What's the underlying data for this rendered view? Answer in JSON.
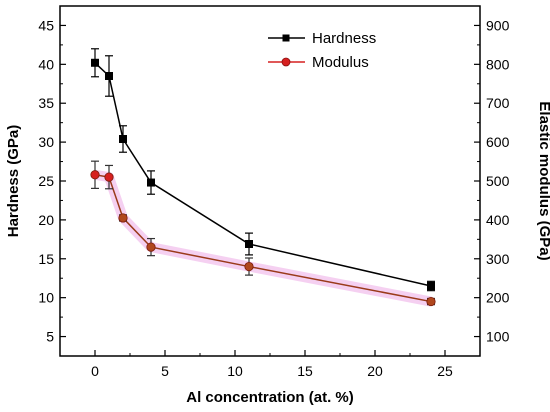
{
  "chart_data": {
    "type": "line",
    "title": "",
    "xlabel": "Al concentration (at. %)",
    "ylabel_left": "Hardness (GPa)",
    "ylabel_right": "Elastic modulus (GPa)",
    "xlim": [
      -2.5,
      27.5
    ],
    "ylim_left": [
      2.5,
      47.5
    ],
    "ylim_right": [
      50,
      950
    ],
    "x_ticks": [
      0,
      5,
      10,
      15,
      20,
      25
    ],
    "y_left_ticks": [
      5,
      10,
      15,
      20,
      25,
      30,
      35,
      40,
      45
    ],
    "y_right_ticks": [
      100,
      200,
      300,
      400,
      500,
      600,
      700,
      800,
      900
    ],
    "legend_position": "top-center",
    "grid": false,
    "series": [
      {
        "name": "Hardness",
        "axis": "left",
        "color": "#000000",
        "marker": "square",
        "x": [
          0,
          1,
          2,
          4,
          11,
          24
        ],
        "y": [
          40.2,
          38.5,
          30.4,
          24.8,
          16.9,
          11.5
        ],
        "error": [
          1.8,
          2.6,
          1.7,
          1.5,
          1.4,
          0.6
        ]
      },
      {
        "name": "Modulus",
        "axis": "right",
        "color": "#d62020",
        "line_color": "#9a3a1a",
        "marker": "circle",
        "x": [
          0,
          1,
          2,
          4,
          11,
          24
        ],
        "y": [
          516,
          510,
          405,
          330,
          280,
          190
        ],
        "error": [
          35,
          30,
          8,
          22,
          22,
          8
        ]
      }
    ]
  }
}
